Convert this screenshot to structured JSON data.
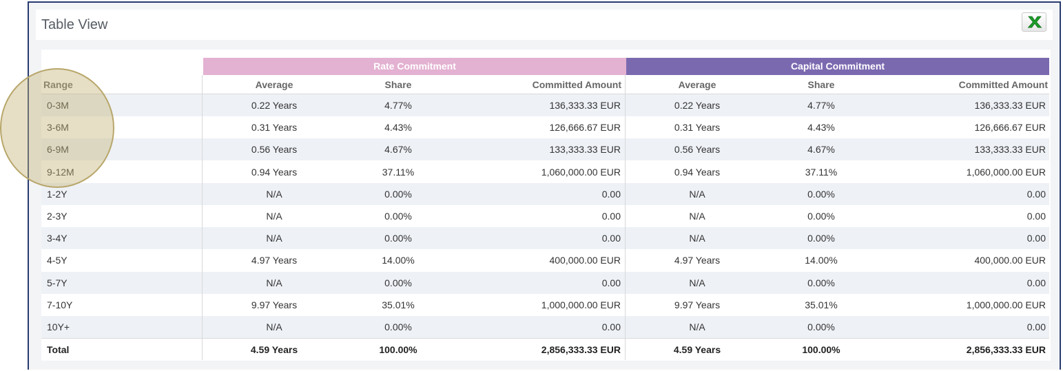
{
  "panel": {
    "title": "Table View",
    "export_icon": "excel-icon"
  },
  "table": {
    "group_headers": {
      "rate": "Rate Commitment",
      "capital": "Capital Commitment"
    },
    "column_headers": {
      "range": "Range",
      "rate_average": "Average",
      "rate_share": "Share",
      "rate_amount": "Committed Amount",
      "capital_average": "Average",
      "capital_share": "Share",
      "capital_amount": "Committed Amount"
    },
    "rows": [
      {
        "range": "0-3M",
        "rate_average": "0.22 Years",
        "rate_share": "4.77%",
        "rate_amount": "136,333.33 EUR",
        "capital_average": "0.22 Years",
        "capital_share": "4.77%",
        "capital_amount": "136,333.33 EUR"
      },
      {
        "range": "3-6M",
        "rate_average": "0.31 Years",
        "rate_share": "4.43%",
        "rate_amount": "126,666.67 EUR",
        "capital_average": "0.31 Years",
        "capital_share": "4.43%",
        "capital_amount": "126,666.67 EUR"
      },
      {
        "range": "6-9M",
        "rate_average": "0.56 Years",
        "rate_share": "4.67%",
        "rate_amount": "133,333.33 EUR",
        "capital_average": "0.56 Years",
        "capital_share": "4.67%",
        "capital_amount": "133,333.33 EUR"
      },
      {
        "range": "9-12M",
        "rate_average": "0.94 Years",
        "rate_share": "37.11%",
        "rate_amount": "1,060,000.00 EUR",
        "capital_average": "0.94 Years",
        "capital_share": "37.11%",
        "capital_amount": "1,060,000.00 EUR"
      },
      {
        "range": "1-2Y",
        "rate_average": "N/A",
        "rate_share": "0.00%",
        "rate_amount": "0.00",
        "capital_average": "N/A",
        "capital_share": "0.00%",
        "capital_amount": "0.00"
      },
      {
        "range": "2-3Y",
        "rate_average": "N/A",
        "rate_share": "0.00%",
        "rate_amount": "0.00",
        "capital_average": "N/A",
        "capital_share": "0.00%",
        "capital_amount": "0.00"
      },
      {
        "range": "3-4Y",
        "rate_average": "N/A",
        "rate_share": "0.00%",
        "rate_amount": "0.00",
        "capital_average": "N/A",
        "capital_share": "0.00%",
        "capital_amount": "0.00"
      },
      {
        "range": "4-5Y",
        "rate_average": "4.97 Years",
        "rate_share": "14.00%",
        "rate_amount": "400,000.00 EUR",
        "capital_average": "4.97 Years",
        "capital_share": "14.00%",
        "capital_amount": "400,000.00 EUR"
      },
      {
        "range": "5-7Y",
        "rate_average": "N/A",
        "rate_share": "0.00%",
        "rate_amount": "0.00",
        "capital_average": "N/A",
        "capital_share": "0.00%",
        "capital_amount": "0.00"
      },
      {
        "range": "7-10Y",
        "rate_average": "9.97 Years",
        "rate_share": "35.01%",
        "rate_amount": "1,000,000.00 EUR",
        "capital_average": "9.97 Years",
        "capital_share": "35.01%",
        "capital_amount": "1,000,000.00 EUR"
      },
      {
        "range": "10Y+",
        "rate_average": "N/A",
        "rate_share": "0.00%",
        "rate_amount": "0.00",
        "capital_average": "N/A",
        "capital_share": "0.00%",
        "capital_amount": "0.00"
      }
    ],
    "total": {
      "range": "Total",
      "rate_average": "4.59 Years",
      "rate_share": "100.00%",
      "rate_amount": "2,856,333.33 EUR",
      "capital_average": "4.59 Years",
      "capital_share": "100.00%",
      "capital_amount": "2,856,333.33 EUR"
    }
  },
  "colors": {
    "rate_header": "#e3b1d1",
    "capital_header": "#7b69b0",
    "excel_green": "#1e9e2a"
  }
}
